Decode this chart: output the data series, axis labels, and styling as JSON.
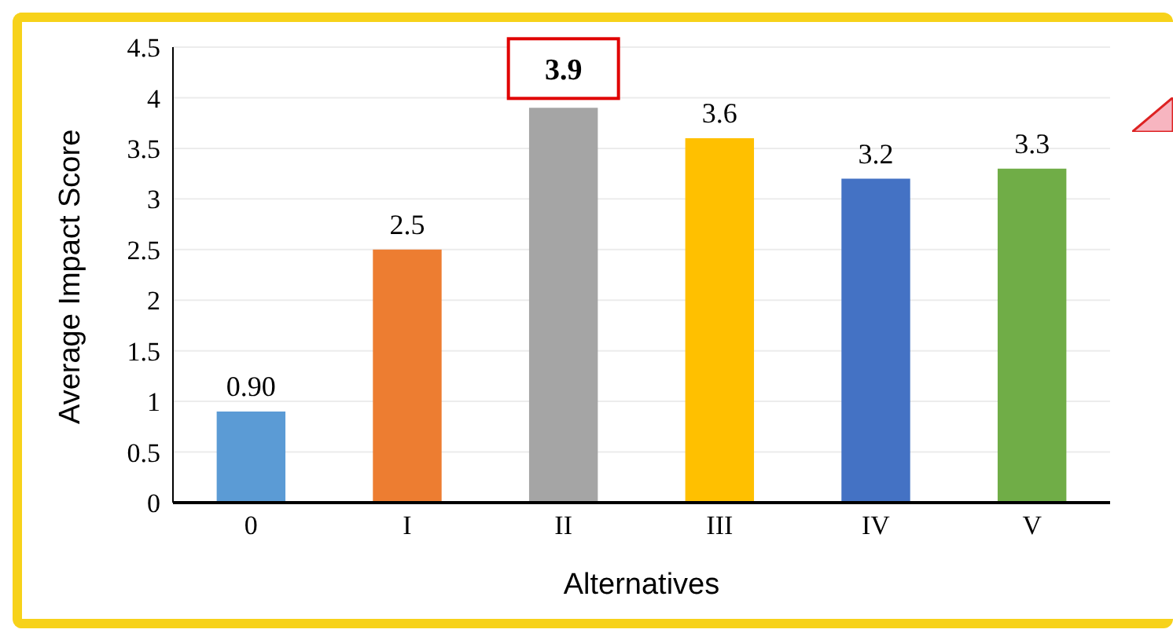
{
  "chart_data": {
    "type": "bar",
    "xlabel": "Alternatives",
    "ylabel": "Average Impact Score",
    "categories": [
      "0",
      "I",
      "II",
      "III",
      "IV",
      "V"
    ],
    "values": [
      0.9,
      2.5,
      3.9,
      3.6,
      3.2,
      3.3
    ],
    "colors": [
      "#5b9bd5",
      "#ed7d31",
      "#a5a5a5",
      "#ffc000",
      "#4472c4",
      "#70ad47"
    ],
    "value_labels": [
      "0.90",
      "2.5",
      null,
      "3.6",
      "3.2",
      "3.3"
    ],
    "annotations": [
      {
        "text": "3.9",
        "x": "II",
        "y": 3.9
      }
    ],
    "ylim": [
      0,
      4.5
    ],
    "yticks": [
      0,
      0.5,
      1,
      1.5,
      2,
      2.5,
      3,
      3.5,
      4,
      4.5
    ],
    "grid": "y"
  }
}
